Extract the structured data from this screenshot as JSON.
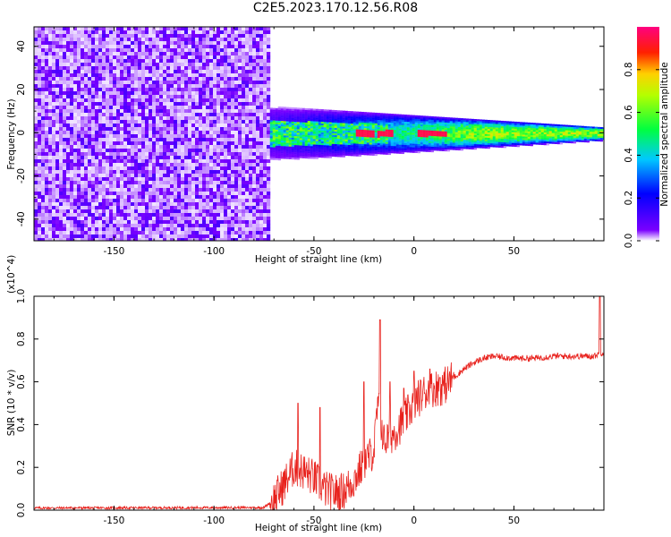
{
  "title": "C2E5.2023.170.12.56.R08",
  "chart_data": [
    {
      "type": "heatmap",
      "xlabel": "Height of straight line (km)",
      "ylabel": "Frequency (Hz)",
      "xlim": [
        -190,
        95
      ],
      "ylim": [
        -50,
        49
      ],
      "xticks": [
        -150,
        -100,
        -50,
        0,
        50
      ],
      "yticks": [
        -40,
        -20,
        0,
        20,
        40
      ],
      "colorbar": {
        "label": "Normalized spectral amplitude",
        "range": [
          0,
          1
        ],
        "ticks": [
          "0.0",
          "0.2",
          "0.4",
          "0.6",
          "0.8"
        ],
        "colormap": "rainbow (white-purple-blue-cyan-green-yellow-red-magenta)"
      },
      "regions": {
        "noise": {
          "x": [
            -190,
            -72
          ],
          "y_span": [
            -50,
            49
          ],
          "amplitude": "0.0-0.3 speckled"
        },
        "signal_band": {
          "x": [
            -72,
            95
          ],
          "center_freq_hz": 0,
          "width_hz_start": 12,
          "width_hz_end": 3,
          "peak_amplitude": 1.0
        }
      },
      "peaks_near_x": [
        -25,
        -15,
        5,
        12
      ]
    },
    {
      "type": "line",
      "xlabel": "Height of straight line (km)",
      "ylabel": "SNR (10 * v/v)",
      "y_multiplier": "(x10^4)",
      "xlim": [
        -190,
        95
      ],
      "ylim": [
        0,
        1.0
      ],
      "xticks": [
        -150,
        -100,
        -50,
        0,
        50
      ],
      "yticks": [
        "0.0",
        "0.2",
        "0.4",
        "0.6",
        "0.8",
        "1.0"
      ],
      "color": "#e8211c",
      "series": [
        {
          "x": [
            -190,
            -75,
            -70,
            -65,
            -60,
            -55,
            -50,
            -45,
            -40,
            -35,
            -30,
            -25,
            -20,
            -18,
            -15,
            -10,
            -5,
            0,
            5,
            10,
            15,
            20,
            25,
            30,
            35,
            40,
            50,
            60,
            70,
            80,
            90,
            95
          ],
          "values": [
            0.01,
            0.012,
            0.05,
            0.12,
            0.2,
            0.18,
            0.15,
            0.1,
            0.08,
            0.09,
            0.14,
            0.22,
            0.28,
            0.5,
            0.32,
            0.36,
            0.42,
            0.5,
            0.55,
            0.57,
            0.58,
            0.62,
            0.66,
            0.69,
            0.71,
            0.72,
            0.71,
            0.71,
            0.72,
            0.72,
            0.72,
            0.74
          ],
          "spikes": [
            [
              -58,
              0.5
            ],
            [
              -47,
              0.48
            ],
            [
              -25,
              0.6
            ],
            [
              -17,
              0.89
            ],
            [
              -12,
              0.6
            ],
            [
              -5,
              0.57
            ],
            [
              0,
              0.65
            ],
            [
              8,
              0.66
            ],
            [
              13,
              0.62
            ],
            [
              93,
              1.0
            ]
          ]
        }
      ]
    }
  ]
}
